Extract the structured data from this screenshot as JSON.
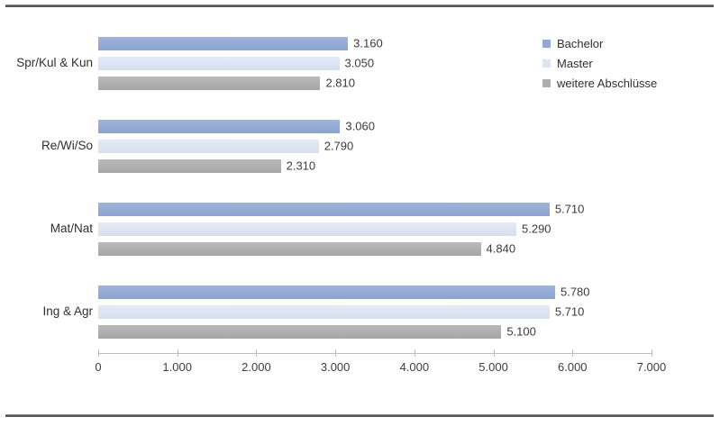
{
  "chart_data": {
    "type": "bar",
    "orientation": "horizontal",
    "title": "",
    "xlabel": "",
    "ylabel": "",
    "xlim": [
      0,
      7000
    ],
    "x_ticks": [
      0,
      1000,
      2000,
      3000,
      4000,
      5000,
      6000,
      7000
    ],
    "x_tick_labels": [
      "0",
      "1.000",
      "2.000",
      "3.000",
      "4.000",
      "5.000",
      "6.000",
      "7.000"
    ],
    "grid": false,
    "legend_position": "top-right",
    "categories": [
      "Spr/Kul & Kun",
      "Re/Wi/So",
      "Mat/Nat",
      "Ing & Agr"
    ],
    "series": [
      {
        "name": "Bachelor",
        "color": "#92a9d4",
        "values": [
          3160,
          3060,
          5710,
          5780
        ],
        "labels": [
          "3.160",
          "3.060",
          "5.710",
          "5.780"
        ]
      },
      {
        "name": "Master",
        "color": "#dde4f1",
        "values": [
          3050,
          2790,
          5290,
          5710
        ],
        "labels": [
          "3.050",
          "2.790",
          "5.290",
          "5.710"
        ]
      },
      {
        "name": "weitere Abschlüsse",
        "color": "#afafaf",
        "values": [
          2810,
          2310,
          4840,
          5100
        ],
        "labels": [
          "2.810",
          "2.310",
          "4.840",
          "5.100"
        ]
      }
    ]
  }
}
